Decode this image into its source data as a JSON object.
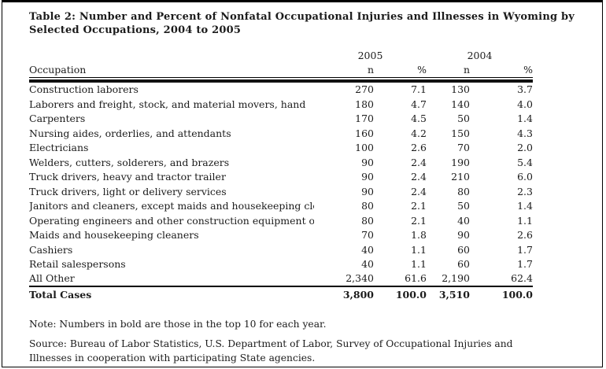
{
  "title": "Table 2: Number and Percent of Nonfatal Occupational Injuries and Illnesses in Wyoming by Selected Occupations, 2004 to 2005",
  "table": {
    "year_headers": [
      "2005",
      "2004"
    ],
    "col_headers": {
      "occupation": "Occupation",
      "n": "n",
      "pct": "%"
    },
    "rows": [
      {
        "occupation": "Construction laborers",
        "n_2005": "270",
        "pct_2005": "7.1",
        "n_2004": "130",
        "pct_2004": "3.7",
        "bold_2005": true,
        "bold_2004": true
      },
      {
        "occupation": "Laborers and freight, stock, and material movers, hand",
        "n_2005": "180",
        "pct_2005": "4.7",
        "n_2004": "140",
        "pct_2004": "4.0",
        "bold_2005": true,
        "bold_2004": true
      },
      {
        "occupation": "Carpenters",
        "n_2005": "170",
        "pct_2005": "4.5",
        "n_2004": "50",
        "pct_2004": "1.4",
        "bold_2005": true,
        "bold_2004": false
      },
      {
        "occupation": "Nursing aides, orderlies, and attendants",
        "n_2005": "160",
        "pct_2005": "4.2",
        "n_2004": "150",
        "pct_2004": "4.3",
        "bold_2005": true,
        "bold_2004": true
      },
      {
        "occupation": "Electricians",
        "n_2005": "100",
        "pct_2005": "2.6",
        "n_2004": "70",
        "pct_2004": "2.0",
        "bold_2005": true,
        "bold_2004": true
      },
      {
        "occupation": "Welders, cutters, solderers, and brazers",
        "n_2005": "90",
        "pct_2005": "2.4",
        "n_2004": "190",
        "pct_2004": "5.4",
        "bold_2005": true,
        "bold_2004": true
      },
      {
        "occupation": "Truck drivers, heavy and tractor trailer",
        "n_2005": "90",
        "pct_2005": "2.4",
        "n_2004": "210",
        "pct_2004": "6.0",
        "bold_2005": true,
        "bold_2004": true
      },
      {
        "occupation": "Truck drivers, light or delivery services",
        "n_2005": "90",
        "pct_2005": "2.4",
        "n_2004": "80",
        "pct_2004": "2.3",
        "bold_2005": true,
        "bold_2004": true
      },
      {
        "occupation": "Janitors and cleaners, except maids and housekeeping cleaners",
        "n_2005": "80",
        "pct_2005": "2.1",
        "n_2004": "50",
        "pct_2004": "1.4",
        "bold_2005": true,
        "bold_2004": false
      },
      {
        "occupation": "Operating engineers and other construction equipment operators",
        "n_2005": "80",
        "pct_2005": "2.1",
        "n_2004": "40",
        "pct_2004": "1.1",
        "bold_2005": true,
        "bold_2004": false
      },
      {
        "occupation": "Maids and housekeeping cleaners",
        "n_2005": "70",
        "pct_2005": "1.8",
        "n_2004": "90",
        "pct_2004": "2.6",
        "bold_2005": false,
        "bold_2004": true
      },
      {
        "occupation": "Cashiers",
        "n_2005": "40",
        "pct_2005": "1.1",
        "n_2004": "60",
        "pct_2004": "1.7",
        "bold_2005": false,
        "bold_2004": true
      },
      {
        "occupation": "Retail salespersons",
        "n_2005": "40",
        "pct_2005": "1.1",
        "n_2004": "60",
        "pct_2004": "1.7",
        "bold_2005": false,
        "bold_2004": true
      },
      {
        "occupation": "All Other",
        "n_2005": "2,340",
        "pct_2005": "61.6",
        "n_2004": "2,190",
        "pct_2004": "62.4",
        "bold_2005": false,
        "bold_2004": false
      }
    ],
    "total": {
      "label": "Total Cases",
      "n_2005": "3,800",
      "pct_2005": "100.0",
      "n_2004": "3,510",
      "pct_2004": "100.0"
    }
  },
  "note": "Note: Numbers in bold are those in the top 10 for each year.",
  "source": "Source: Bureau of Labor Statistics, U.S. Department of Labor, Survey of Occupational Injuries and Illnesses in cooperation with participating State agencies."
}
